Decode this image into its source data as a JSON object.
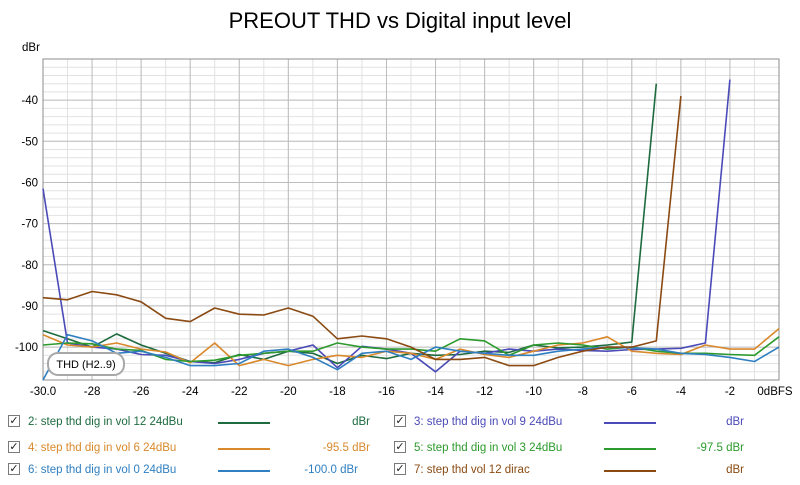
{
  "chart_data": {
    "type": "line",
    "title": "PREOUT THD vs Digital input level",
    "ylabel": "dBr",
    "xlabel": "0dBFS",
    "xlim": [
      -30,
      0
    ],
    "ylim": [
      -108,
      -30
    ],
    "x_ticks": [
      -30,
      -28,
      -26,
      -24,
      -22,
      -20,
      -18,
      -16,
      -14,
      -12,
      -10,
      -8,
      -6,
      -4,
      -2,
      0
    ],
    "x_tick_labels": [
      "-30.0",
      "-28",
      "-26",
      "-24",
      "-22",
      "-20",
      "-18",
      "-16",
      "-14",
      "-12",
      "-10",
      "-8",
      "-6",
      "-4",
      "-2",
      "0dBFS"
    ],
    "y_ticks": [
      -40,
      -50,
      -60,
      -70,
      -80,
      -90,
      -100
    ],
    "y_tick_labels": [
      "-40",
      "-50",
      "-60",
      "-70",
      "-80",
      "-90",
      "-100"
    ],
    "grid": true,
    "annotation": "THD (H2..9)",
    "series": [
      {
        "name": "2: step thd dig in vol 12 24dBu",
        "color": "#1d6b3f",
        "value": "dBr",
        "x": [
          -30,
          -29,
          -28,
          -27,
          -26,
          -25,
          -24,
          -23,
          -22,
          -21,
          -20,
          -19,
          -18,
          -17,
          -16,
          -15,
          -14,
          -13,
          -12,
          -11,
          -10,
          -9,
          -8,
          -7,
          -6,
          -5
        ],
        "y": [
          -96,
          -98,
          -100,
          -96.8,
          -99.5,
          -101.5,
          -103.5,
          -103.8,
          -101.8,
          -103,
          -101,
          -101.5,
          -104,
          -102,
          -102.8,
          -101.5,
          -102,
          -101.8,
          -101,
          -101.3,
          -99.5,
          -100.2,
          -100,
          -99.5,
          -98.8,
          -36
        ]
      },
      {
        "name": "3: step thd dig in vol 9 24dBu",
        "color": "#4a4ab8",
        "value": "dBr",
        "x": [
          -30,
          -29,
          -28,
          -27,
          -26,
          -25,
          -24,
          -23,
          -22,
          -21,
          -20,
          -19,
          -18,
          -17,
          -16,
          -15,
          -14,
          -13,
          -12,
          -11,
          -10,
          -9,
          -8,
          -7,
          -6,
          -5,
          -4,
          -3,
          -2
        ],
        "y": [
          -61.5,
          -99,
          -100,
          -100.5,
          -101.8,
          -102,
          -103.5,
          -104,
          -103,
          -101.5,
          -101,
          -99.5,
          -105,
          -99.8,
          -100.5,
          -101.5,
          -106,
          -101,
          -101.5,
          -100.5,
          -101,
          -100.5,
          -100.8,
          -101,
          -100.6,
          -100.5,
          -100.3,
          -99,
          -35
        ]
      },
      {
        "name": "4: step thd dig in vol 6 24dBu",
        "color": "#d9892b",
        "value": "-95.5 dBr",
        "x": [
          -30,
          -29,
          -28,
          -27,
          -26,
          -25,
          -24,
          -23,
          -22,
          -21,
          -20,
          -19,
          -18,
          -17,
          -16,
          -15,
          -14,
          -13,
          -12,
          -11,
          -10,
          -9,
          -8,
          -7,
          -6,
          -5,
          -4,
          -3,
          -2,
          -1,
          0
        ],
        "y": [
          -97,
          -99.5,
          -100,
          -99,
          -100.5,
          -101.2,
          -103.8,
          -99,
          -104.5,
          -103,
          -104.5,
          -103,
          -102,
          -102.5,
          -101,
          -101.5,
          -103,
          -100.5,
          -101.8,
          -102.5,
          -101,
          -99.5,
          -99,
          -97.5,
          -101,
          -101.5,
          -101.8,
          -99.5,
          -100.5,
          -100.5,
          -95.5
        ]
      },
      {
        "name": "5: step thd dig in vol 3 24dBu",
        "color": "#2c9a2c",
        "value": "-97.5 dBr",
        "x": [
          -30,
          -29,
          -28,
          -27,
          -26,
          -25,
          -24,
          -23,
          -22,
          -21,
          -20,
          -19,
          -18,
          -17,
          -16,
          -15,
          -14,
          -13,
          -12,
          -11,
          -10,
          -9,
          -8,
          -7,
          -6,
          -5,
          -4,
          -3,
          -2,
          -1,
          0
        ],
        "y": [
          -99.5,
          -99,
          -99.2,
          -100.5,
          -100.8,
          -103,
          -103.5,
          -103.2,
          -102,
          -101.5,
          -101,
          -101,
          -99,
          -100,
          -100.5,
          -100.5,
          -101,
          -98,
          -98.5,
          -102,
          -99.5,
          -99,
          -99.5,
          -100.5,
          -100,
          -101,
          -101.5,
          -101.5,
          -101.8,
          -102,
          -97.5
        ]
      },
      {
        "name": "6: step thd dig in vol 0 24dBu",
        "color": "#2f7fc1",
        "value": "-100.0 dBr",
        "x": [
          -30,
          -29,
          -28,
          -27,
          -26,
          -25,
          -24,
          -23,
          -22,
          -21,
          -20,
          -19,
          -18,
          -17,
          -16,
          -15,
          -14,
          -13,
          -12,
          -11,
          -10,
          -9,
          -8,
          -7,
          -6,
          -5,
          -4,
          -3,
          -2,
          -1,
          0
        ],
        "y": [
          -108,
          -97,
          -98.5,
          -101.5,
          -101,
          -102.5,
          -104.5,
          -104.5,
          -104,
          -101,
          -100.5,
          -102.5,
          -105.5,
          -101.5,
          -101,
          -103,
          -100,
          -101,
          -101.5,
          -102,
          -102,
          -101,
          -100.5,
          -100,
          -100.2,
          -100.5,
          -101.5,
          -101.8,
          -102.5,
          -103.5,
          -100
        ]
      },
      {
        "name": "7: step thd vol 12 dirac",
        "color": "#8a4a12",
        "value": "dBr",
        "x": [
          -30,
          -29,
          -28,
          -27,
          -26,
          -25,
          -24,
          -23,
          -22,
          -21,
          -20,
          -19,
          -18,
          -17,
          -16,
          -15,
          -14,
          -13,
          -12,
          -11,
          -10,
          -9,
          -8,
          -7,
          -6,
          -5,
          -4
        ],
        "y": [
          -88,
          -88.5,
          -86.5,
          -87.3,
          -89,
          -93,
          -93.8,
          -90.5,
          -92,
          -92.2,
          -90.5,
          -92.5,
          -98,
          -97.3,
          -98,
          -100,
          -103,
          -103,
          -102.5,
          -104.5,
          -104.5,
          -102.5,
          -101,
          -100,
          -100,
          -98.5,
          -39
        ]
      }
    ]
  },
  "legend_check_glyph": "✓"
}
